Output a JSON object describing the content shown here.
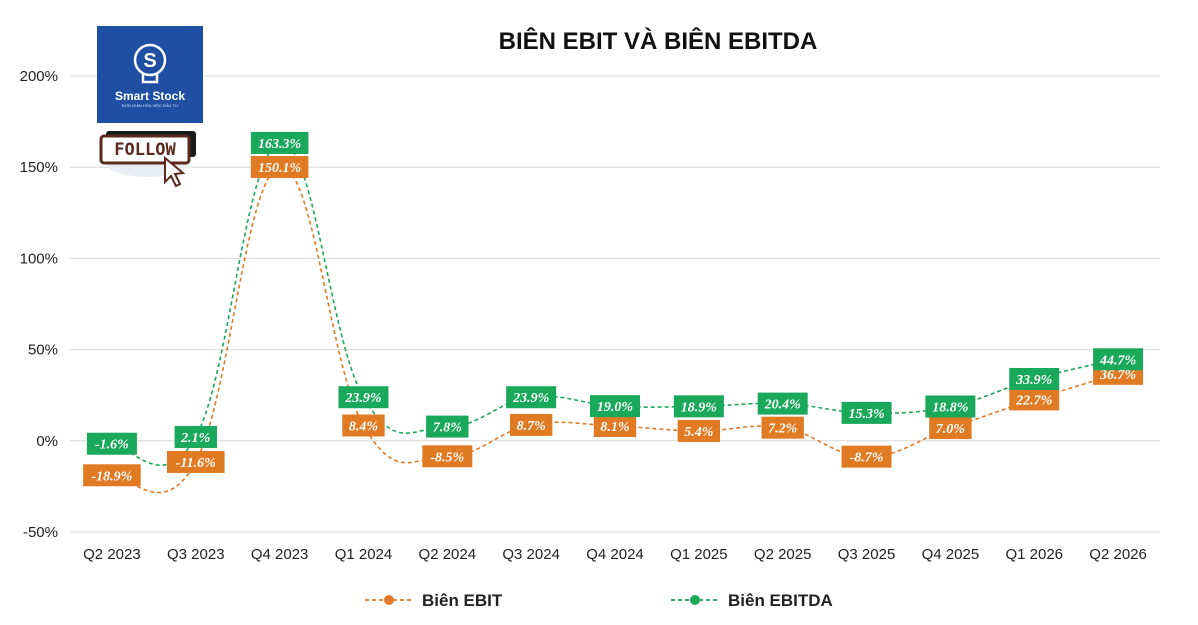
{
  "logo": {
    "name": "Smart Stock",
    "tagline": "ĐƠN GIẢN HÓA VIỆC ĐẦU TƯ",
    "follow_label": "FOLLOW"
  },
  "colors": {
    "ebit": "#E07B24",
    "ebitda": "#1AA85B",
    "grid": "#d9d9d9",
    "logo_bg": "#1f4fa3"
  },
  "chart_data": {
    "type": "line",
    "title": "BIÊN EBIT VÀ BIÊN EBITDA",
    "xlabel": "",
    "ylabel": "",
    "categories": [
      "Q2 2023",
      "Q3 2023",
      "Q4 2023",
      "Q1 2024",
      "Q2 2024",
      "Q3 2024",
      "Q4 2024",
      "Q1 2025",
      "Q2 2025",
      "Q3 2025",
      "Q4 2025",
      "Q1 2026",
      "Q2 2026"
    ],
    "ylim": [
      -50,
      200
    ],
    "yticks": [
      -50,
      0,
      50,
      100,
      150,
      200
    ],
    "ytick_labels": [
      "-50%",
      "0%",
      "50%",
      "100%",
      "150%",
      "200%"
    ],
    "grid": true,
    "line_style": "dashed-smooth",
    "legend_position": "bottom",
    "series": [
      {
        "name": "Biên EBIT",
        "values": [
          -18.9,
          -11.6,
          150.1,
          8.4,
          -8.5,
          8.7,
          8.1,
          5.4,
          7.2,
          -8.7,
          7.0,
          22.7,
          36.7
        ],
        "labels": [
          "-18.9%",
          "-11.6%",
          "150.1%",
          "8.4%",
          "-8.5%",
          "8.7%",
          "8.1%",
          "5.4%",
          "7.2%",
          "-8.7%",
          "7.0%",
          "22.7%",
          "36.7%"
        ]
      },
      {
        "name": "Biên EBITDA",
        "values": [
          -1.6,
          2.1,
          163.3,
          23.9,
          7.8,
          23.9,
          19.0,
          18.9,
          20.4,
          15.3,
          18.8,
          33.9,
          44.7
        ],
        "labels": [
          "-1.6%",
          "2.1%",
          "163.3%",
          "23.9%",
          "7.8%",
          "23.9%",
          "19.0%",
          "18.9%",
          "20.4%",
          "15.3%",
          "18.8%",
          "33.9%",
          "44.7%"
        ]
      }
    ]
  }
}
